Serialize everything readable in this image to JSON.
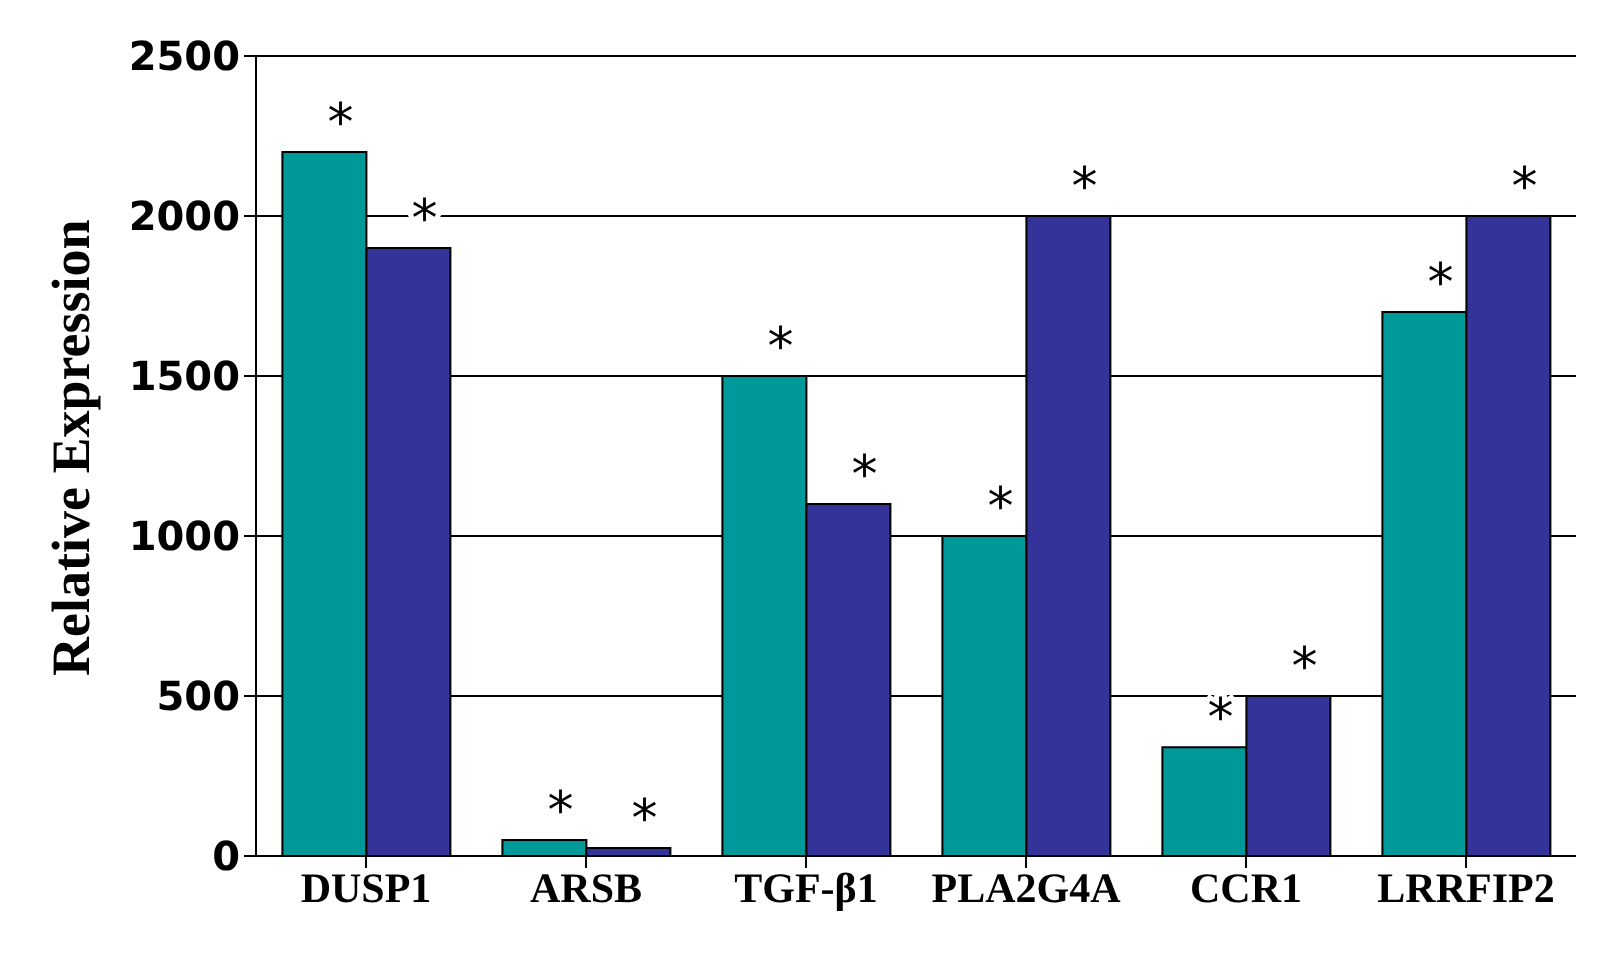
{
  "chart_data": {
    "type": "bar",
    "ylabel": "Relative Expression",
    "categories": [
      "DUSP1",
      "ARSB",
      "TGF-β1",
      "PLA2G4A",
      "CCR1",
      "LRRFIP2"
    ],
    "series": [
      {
        "color": "#009999",
        "values": [
          2200,
          50,
          1500,
          1000,
          340,
          1700
        ]
      },
      {
        "color": "#333399",
        "values": [
          1900,
          25,
          1100,
          2000,
          500,
          2000
        ]
      }
    ],
    "ylim": [
      0,
      2500
    ],
    "yticks": [
      0,
      500,
      1000,
      1500,
      2000,
      2500
    ],
    "grid": "y",
    "legend": false,
    "annotations": [
      {
        "text": "*",
        "x": "DUSP1",
        "y": 2200
      },
      {
        "text": "*",
        "x": "DUSP1",
        "y": 1900
      },
      {
        "text": "*",
        "x": "ARSB",
        "y": 50
      },
      {
        "text": "*",
        "x": "ARSB",
        "y": 25
      },
      {
        "text": "*",
        "x": "TGF-β1",
        "y": 1500
      },
      {
        "text": "*",
        "x": "TGF-β1",
        "y": 1100
      },
      {
        "text": "*",
        "x": "PLA2G4A",
        "y": 1000
      },
      {
        "text": "*",
        "x": "PLA2G4A",
        "y": 2000
      },
      {
        "text": "*",
        "x": "CCR1",
        "y": 340
      },
      {
        "text": "*",
        "x": "CCR1",
        "y": 500
      },
      {
        "text": "*",
        "x": "LRRFIP2",
        "y": 1700
      },
      {
        "text": "*",
        "x": "LRRFIP2",
        "y": 2000
      }
    ]
  }
}
